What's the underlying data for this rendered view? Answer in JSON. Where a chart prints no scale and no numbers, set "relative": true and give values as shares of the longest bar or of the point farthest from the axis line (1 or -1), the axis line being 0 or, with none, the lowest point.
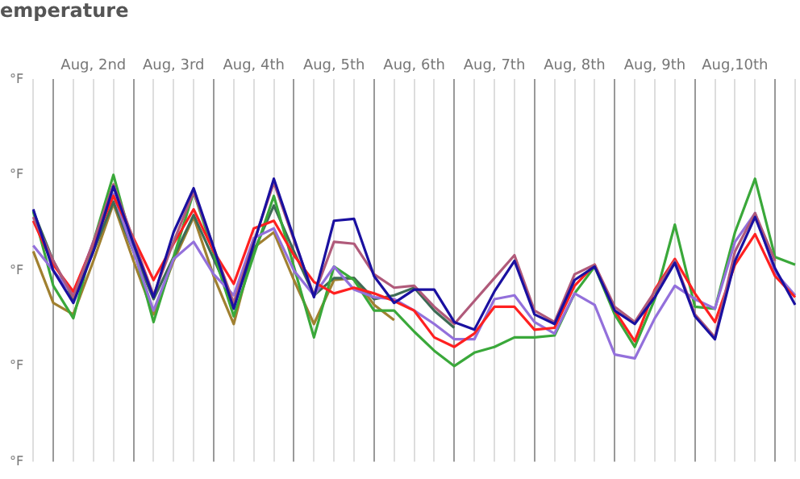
{
  "chart_data": {
    "type": "line",
    "title": "emperature",
    "ylabel": "°F",
    "relative": true,
    "grid": "x",
    "legend": false,
    "categories": [
      null,
      null,
      null,
      "Aug, 2nd",
      null,
      null,
      null,
      "Aug, 3rd",
      null,
      null,
      null,
      "Aug, 4th",
      null,
      null,
      null,
      "Aug, 5th",
      null,
      null,
      null,
      "Aug, 6th",
      null,
      null,
      null,
      "Aug, 7th",
      null,
      null,
      null,
      "Aug, 8th",
      null,
      null,
      null,
      "Aug, 9th",
      null,
      null,
      null,
      "Aug,10th",
      null,
      null,
      null
    ],
    "series": [
      {
        "color": "#a08030",
        "values": [
          0.6,
          0.33,
          0.27,
          0.55,
          0.85,
          0.55,
          0.27,
          0.55,
          0.78,
          0.47,
          0.22,
          0.62,
          0.7,
          0.45,
          0.22,
          0.45,
          0.46,
          0.32,
          0.24,
          null,
          null,
          null,
          null,
          null,
          null,
          null,
          null,
          null,
          null,
          null,
          null,
          null,
          null,
          null,
          null,
          null,
          null,
          null,
          null
        ]
      },
      {
        "color": "#3d6b55",
        "values": [
          0.81,
          0.55,
          0.35,
          0.6,
          0.86,
          0.6,
          0.35,
          0.57,
          0.79,
          0.56,
          0.33,
          0.6,
          0.84,
          0.6,
          0.37,
          0.46,
          0.46,
          0.35,
          0.37,
          0.41,
          0.29,
          0.2,
          null,
          null,
          null,
          null,
          null,
          null,
          null,
          null,
          null,
          null,
          null,
          null,
          null,
          null,
          null,
          null,
          null
        ]
      },
      {
        "color": "#3aa83a",
        "values": [
          0.81,
          0.42,
          0.25,
          0.65,
          1.0,
          0.62,
          0.23,
          0.57,
          0.91,
          0.59,
          0.26,
          0.58,
          0.89,
          0.52,
          0.15,
          0.52,
          0.45,
          0.29,
          0.29,
          0.18,
          0.08,
          0.0,
          0.07,
          0.1,
          0.15,
          0.15,
          0.16,
          0.38,
          0.52,
          0.27,
          0.1,
          0.35,
          0.74,
          0.31,
          0.3,
          0.7,
          0.98,
          0.57,
          0.53
        ]
      },
      {
        "color": "#9370db",
        "values": [
          0.63,
          0.5,
          0.37,
          0.65,
          0.9,
          0.6,
          0.29,
          0.56,
          0.65,
          0.48,
          0.37,
          0.67,
          0.72,
          0.5,
          0.37,
          0.52,
          0.4,
          0.36,
          0.35,
          0.29,
          0.22,
          0.14,
          0.14,
          0.35,
          0.37,
          0.23,
          0.17,
          0.38,
          0.32,
          0.06,
          0.04,
          0.25,
          0.42,
          0.35,
          0.3,
          0.65,
          0.8,
          0.49,
          0.37
        ]
      },
      {
        "color": "#ff2020",
        "values": [
          0.76,
          0.53,
          0.39,
          0.64,
          0.89,
          0.67,
          0.45,
          0.64,
          0.82,
          0.6,
          0.43,
          0.72,
          0.76,
          0.58,
          0.44,
          0.38,
          0.41,
          0.38,
          0.34,
          0.29,
          0.15,
          0.1,
          0.17,
          0.31,
          0.31,
          0.19,
          0.2,
          0.42,
          0.53,
          0.29,
          0.13,
          0.4,
          0.56,
          0.38,
          0.23,
          0.53,
          0.69,
          0.47,
          0.36
        ]
      },
      {
        "color": "#b05a7a",
        "values": [
          0.78,
          0.55,
          0.36,
          0.65,
          0.95,
          0.66,
          0.37,
          0.65,
          0.91,
          0.62,
          0.33,
          0.65,
          0.96,
          0.66,
          0.37,
          0.65,
          0.64,
          0.48,
          0.41,
          0.42,
          0.31,
          0.22,
          0.34,
          0.46,
          0.58,
          0.29,
          0.23,
          0.48,
          0.53,
          0.31,
          0.23,
          0.39,
          0.55,
          0.27,
          0.15,
          0.6,
          0.8,
          0.55,
          null
        ]
      },
      {
        "color": "#1a10a0",
        "values": [
          0.82,
          0.5,
          0.33,
          0.6,
          0.94,
          0.64,
          0.36,
          0.7,
          0.93,
          0.62,
          0.3,
          0.64,
          0.98,
          0.67,
          0.36,
          0.76,
          0.77,
          0.47,
          0.33,
          0.4,
          0.4,
          0.23,
          0.19,
          0.39,
          0.55,
          0.27,
          0.22,
          0.45,
          0.52,
          0.29,
          0.22,
          0.36,
          0.54,
          0.26,
          0.14,
          0.55,
          0.78,
          0.51,
          0.32
        ]
      }
    ]
  }
}
